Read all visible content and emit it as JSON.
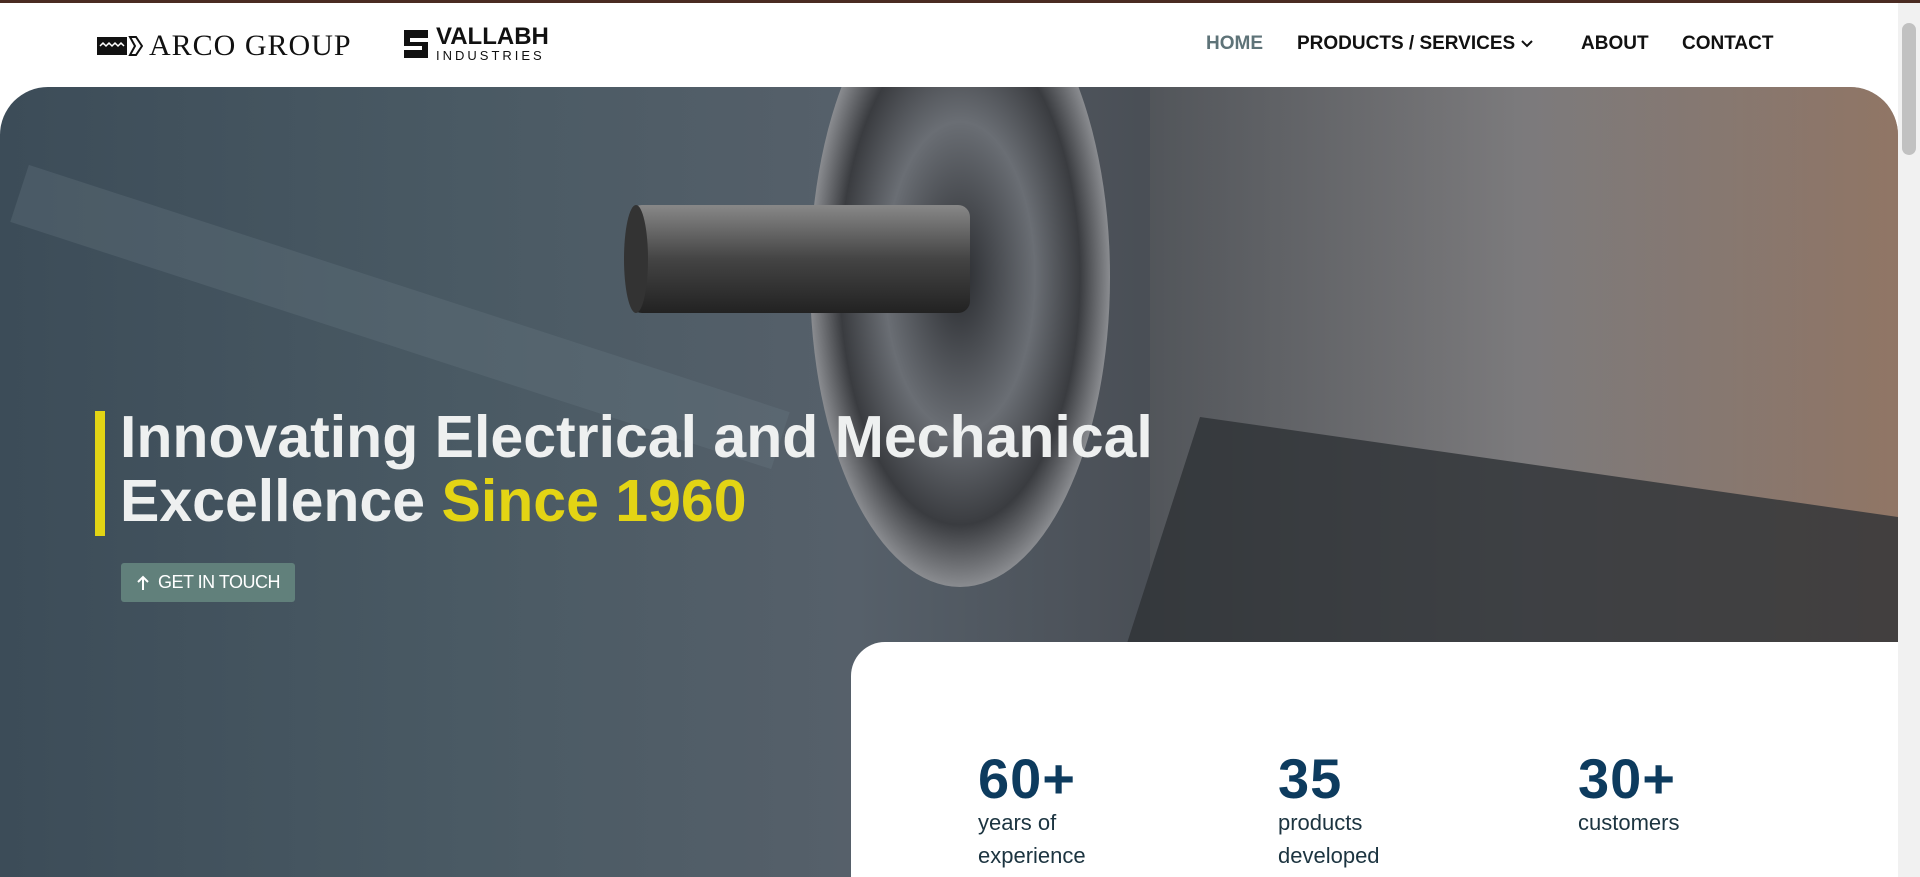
{
  "header": {
    "logos": [
      "ARCO GROUP",
      "VALLABH",
      "INDUSTRIES"
    ],
    "nav": [
      "HOME",
      "PRODUCTS / SERVICES",
      "ABOUT",
      "CONTACT"
    ]
  },
  "hero": {
    "headline": "Innovating Electrical and Mechanical Excellence",
    "highlight": "Since 1960",
    "button": "GET IN TOUCH"
  },
  "stats": [
    {
      "value": "60+",
      "label": "years of experience"
    },
    {
      "value": "35",
      "label": "products developed"
    },
    {
      "value": "30+",
      "label": "customers"
    }
  ]
}
